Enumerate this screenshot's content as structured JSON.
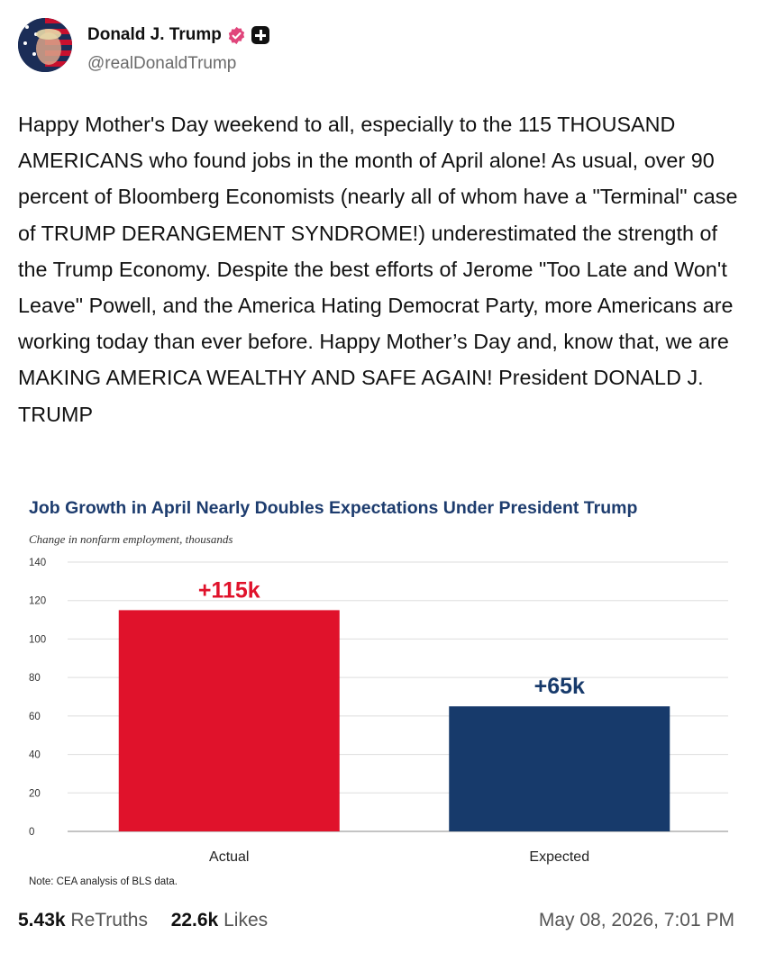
{
  "author": {
    "name": "Donald J. Trump",
    "handle": "@realDonaldTrump"
  },
  "post": {
    "text": "Happy Mother's Day weekend to all, especially to the 115 THOUSAND AMERICANS who found jobs in the month of April alone! As usual, over 90 percent of Bloomberg Economists (nearly all of whom have a \"Terminal\" case of TRUMP DERANGEMENT SYNDROME!) underestimated the strength of the Trump Economy. Despite the best efforts of Jerome \"Too Late and Won't Leave\" Powell, and the America Hating Democrat Party, more Americans are working today than ever before. Happy Mother’s Day and, know that, we are MAKING AMERICA WEALTHY AND SAFE AGAIN! President DONALD J. TRUMP"
  },
  "chart_data": {
    "type": "bar",
    "title": "Job Growth in April Nearly Doubles Expectations Under President Trump",
    "subtitle": "Change in nonfarm employment, thousands",
    "categories": [
      "Actual",
      "Expected"
    ],
    "values": [
      115,
      65
    ],
    "data_labels": [
      "+115k",
      "+65k"
    ],
    "colors": [
      "#e0122b",
      "#173a6b"
    ],
    "ylim": [
      0,
      140
    ],
    "yticks": [
      0,
      20,
      40,
      60,
      80,
      100,
      120,
      140
    ],
    "grid": true,
    "note": "Note: CEA analysis of BLS data."
  },
  "stats": {
    "retruths_count": "5.43k",
    "retruths_label": "ReTruths",
    "likes_count": "22.6k",
    "likes_label": "Likes",
    "timestamp": "May 08, 2026, 7:01 PM"
  },
  "icons": {
    "verified": "verified-badge-icon",
    "plus": "truth-plus-icon"
  },
  "colors": {
    "title": "#1d3c6e",
    "verified": "#e0457b"
  }
}
